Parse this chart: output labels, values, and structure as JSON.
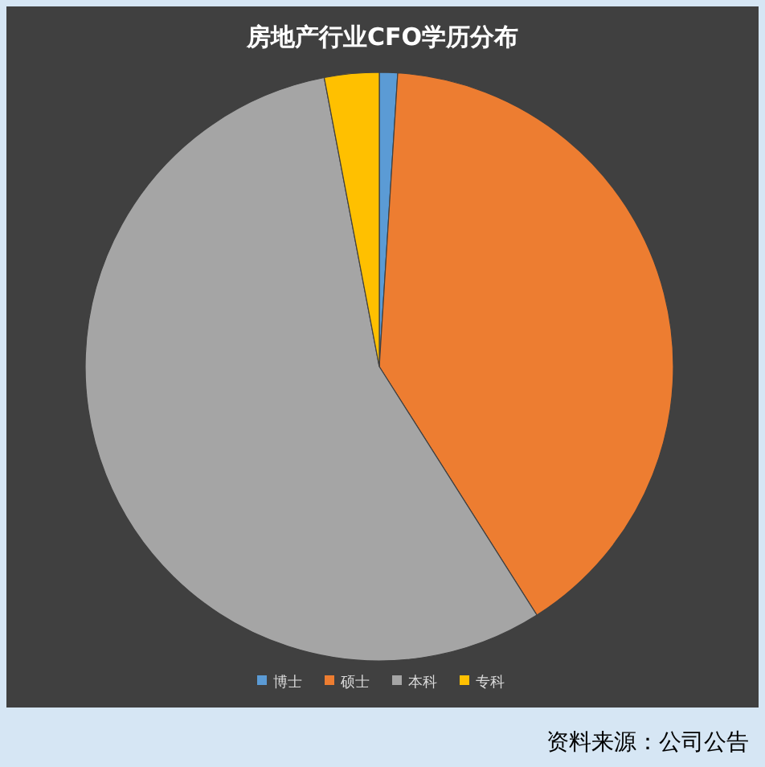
{
  "chart_data": {
    "type": "pie",
    "title": "房地产行业CFO学历分布",
    "categories": [
      "博士",
      "硕士",
      "本科",
      "专科"
    ],
    "values": [
      1,
      40,
      56,
      3
    ],
    "colors": [
      "#5b9bd5",
      "#ed7d31",
      "#a5a5a5",
      "#ffc000"
    ],
    "legend": "bottom",
    "annotations": [
      "资料来源：公司公告"
    ]
  }
}
